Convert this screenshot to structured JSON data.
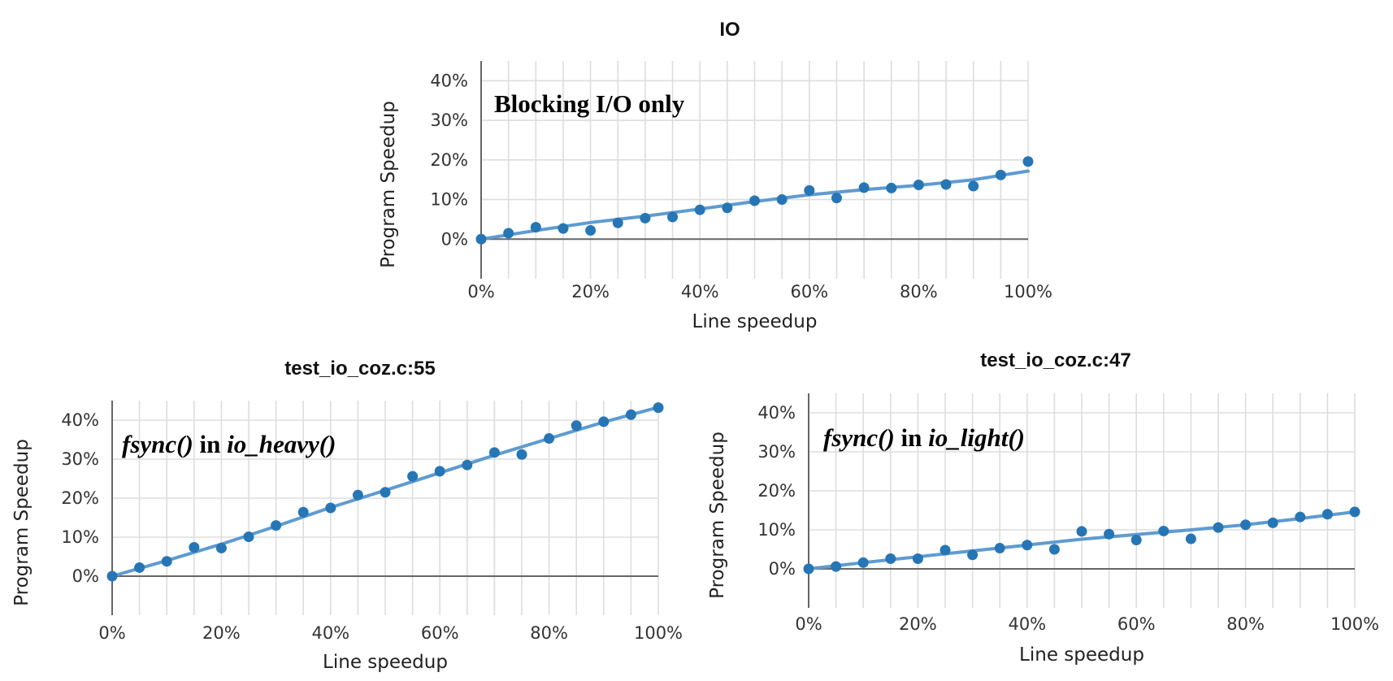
{
  "chart_data": [
    {
      "type": "scatter",
      "title": "IO",
      "annotation": "Blocking I/O only",
      "annotation_parts": [
        {
          "text": "Blocking I/O only",
          "italic": false
        }
      ],
      "xlabel": "Line speedup",
      "ylabel": "Program Speedup",
      "xlim": [
        0,
        100
      ],
      "ylim": [
        -10,
        45
      ],
      "xticks": [
        "0%",
        "20%",
        "40%",
        "60%",
        "80%",
        "100%"
      ],
      "xtick_values": [
        0,
        20,
        40,
        60,
        80,
        100
      ],
      "yticks": [
        "0%",
        "10%",
        "20%",
        "30%",
        "40%"
      ],
      "ytick_values": [
        0,
        10,
        20,
        30,
        40
      ],
      "grid": true,
      "colors": {
        "points": "#2676b6",
        "fit_line": "#5e9bd1"
      },
      "points": {
        "x": [
          0,
          5,
          10,
          15,
          20,
          25,
          30,
          35,
          40,
          45,
          50,
          55,
          60,
          65,
          70,
          75,
          80,
          85,
          90,
          95,
          100
        ],
        "y": [
          0,
          1.5,
          3,
          2.7,
          2.2,
          4.1,
          5.3,
          5.6,
          7.4,
          7.9,
          9.7,
          10,
          12.3,
          10.4,
          13,
          12.9,
          13.7,
          13.8,
          13.4,
          16.2,
          19.6
        ]
      },
      "fit_line": {
        "x": [
          0,
          10,
          20,
          30,
          40,
          50,
          60,
          70,
          80,
          90,
          100
        ],
        "y": [
          0,
          2.2,
          4.2,
          5.8,
          7.6,
          9.5,
          11.2,
          12.5,
          13.6,
          15,
          17.2
        ]
      }
    },
    {
      "type": "scatter",
      "title": "test_io_coz.c:55",
      "annotation": "fsync() in io_heavy()",
      "annotation_parts": [
        {
          "text": "fsync()",
          "italic": true
        },
        {
          "text": " in ",
          "italic": false
        },
        {
          "text": "io_heavy()",
          "italic": true
        }
      ],
      "xlabel": "Line speedup",
      "ylabel": "Program Speedup",
      "xlim": [
        0,
        100
      ],
      "ylim": [
        -10,
        45
      ],
      "xticks": [
        "0%",
        "20%",
        "40%",
        "60%",
        "80%",
        "100%"
      ],
      "xtick_values": [
        0,
        20,
        40,
        60,
        80,
        100
      ],
      "yticks": [
        "0%",
        "10%",
        "20%",
        "30%",
        "40%"
      ],
      "ytick_values": [
        0,
        10,
        20,
        30,
        40
      ],
      "grid": true,
      "colors": {
        "points": "#2676b6",
        "fit_line": "#5e9bd1"
      },
      "points": {
        "x": [
          0,
          5,
          10,
          15,
          20,
          25,
          30,
          35,
          40,
          45,
          50,
          55,
          60,
          65,
          70,
          75,
          80,
          85,
          90,
          95,
          100
        ],
        "y": [
          0,
          2.2,
          3.8,
          7.4,
          7.2,
          10.1,
          13,
          16.4,
          17.5,
          20.8,
          21.5,
          25.6,
          26.9,
          28.5,
          31.7,
          31.2,
          35.3,
          38.6,
          39.6,
          41.4,
          43.2
        ]
      },
      "fit_line": {
        "x": [
          0,
          10,
          20,
          30,
          40,
          50,
          60,
          70,
          80,
          90,
          100
        ],
        "y": [
          0,
          4,
          8.2,
          12.8,
          17.6,
          22,
          26.5,
          31,
          35.3,
          39.5,
          43.3
        ]
      }
    },
    {
      "type": "scatter",
      "title": "test_io_coz.c:47",
      "annotation": "fsync() in io_light()",
      "annotation_parts": [
        {
          "text": "fsync()",
          "italic": true
        },
        {
          "text": " in ",
          "italic": false
        },
        {
          "text": "io_light()",
          "italic": true
        }
      ],
      "xlabel": "Line speedup",
      "ylabel": "Program Speedup",
      "xlim": [
        0,
        100
      ],
      "ylim": [
        -10,
        45
      ],
      "xticks": [
        "0%",
        "20%",
        "40%",
        "60%",
        "80%",
        "100%"
      ],
      "xtick_values": [
        0,
        20,
        40,
        60,
        80,
        100
      ],
      "yticks": [
        "0%",
        "10%",
        "20%",
        "30%",
        "40%"
      ],
      "ytick_values": [
        0,
        10,
        20,
        30,
        40
      ],
      "grid": true,
      "colors": {
        "points": "#2676b6",
        "fit_line": "#5e9bd1"
      },
      "points": {
        "x": [
          0,
          5,
          10,
          15,
          20,
          25,
          30,
          35,
          40,
          45,
          50,
          55,
          60,
          65,
          70,
          75,
          80,
          85,
          90,
          95,
          100
        ],
        "y": [
          0,
          0.6,
          1.6,
          2.6,
          2.6,
          4.8,
          3.6,
          5.3,
          6.1,
          5,
          9.6,
          8.9,
          7.4,
          9.7,
          7.7,
          10.6,
          11.3,
          11.8,
          13.3,
          14,
          14.6
        ]
      },
      "fit_line": {
        "x": [
          0,
          10,
          20,
          30,
          40,
          50,
          60,
          70,
          80,
          90,
          100
        ],
        "y": [
          0,
          1.6,
          3.1,
          4.6,
          6.1,
          7.6,
          8.8,
          10,
          11.3,
          12.9,
          14.6
        ]
      }
    }
  ]
}
